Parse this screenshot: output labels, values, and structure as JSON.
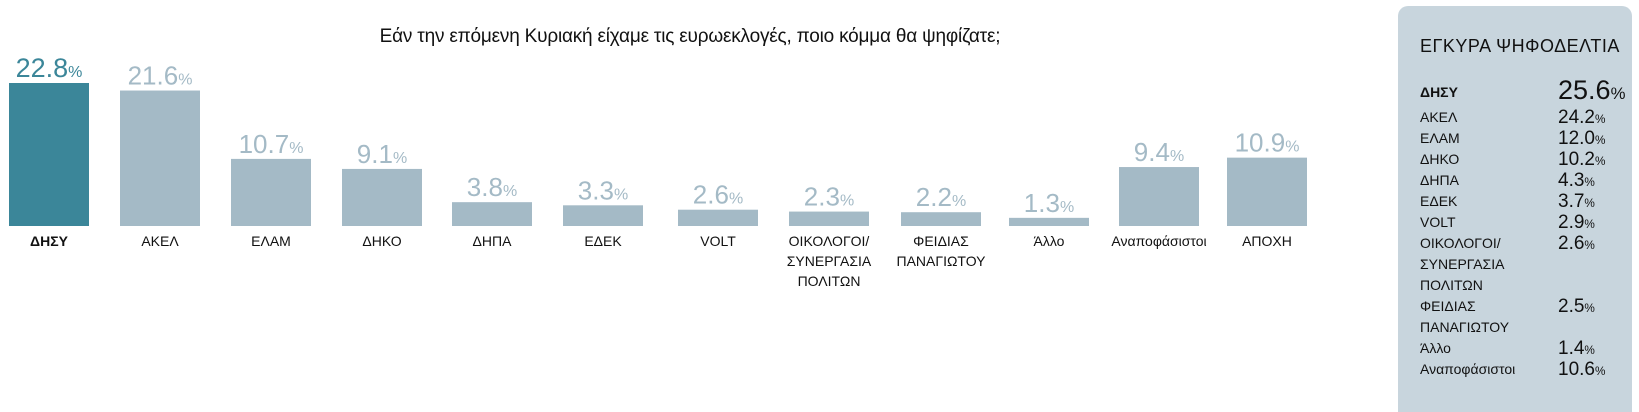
{
  "chart_data": {
    "type": "bar",
    "title": "Εάν την επόμενη Κυριακή είχαμε τις ευρωεκλογές, ποιο κόμμα θα ψηφίζατε;",
    "unit": "%",
    "categories": [
      "ΔΗΣΥ",
      "ΑΚΕΛ",
      "ΕΛΑΜ",
      "ΔΗΚΟ",
      "ΔΗΠΑ",
      "ΕΔΕΚ",
      "VOLT",
      "ΟΙΚΟΛΟΓΟΙ/ ΣΥΝΕΡΓΑΣΙΑ ΠΟΛΙΤΩΝ",
      "ΦΕΙΔΙΑΣ ΠΑΝΑΓΙΩΤΟΥ",
      "Άλλο",
      "Αναποφάσιστοι",
      "ΑΠΟΧΗ"
    ],
    "category_lines": [
      [
        "ΔΗΣΥ"
      ],
      [
        "ΑΚΕΛ"
      ],
      [
        "ΕΛΑΜ"
      ],
      [
        "ΔΗΚΟ"
      ],
      [
        "ΔΗΠΑ"
      ],
      [
        "ΕΔΕΚ"
      ],
      [
        "VOLT"
      ],
      [
        "ΟΙΚΟΛΟΓΟΙ/",
        "ΣΥΝΕΡΓΑΣΙΑ",
        "ΠΟΛΙΤΩΝ"
      ],
      [
        "ΦΕΙΔΙΑΣ",
        "ΠΑΝΑΓΙΩΤΟΥ"
      ],
      [
        "Άλλο"
      ],
      [
        "Αναποφάσιστοι"
      ],
      [
        "ΑΠΟΧΗ"
      ]
    ],
    "values": [
      22.8,
      21.6,
      10.7,
      9.1,
      3.8,
      3.3,
      2.6,
      2.3,
      2.2,
      1.3,
      9.4,
      10.9
    ],
    "highlight_index": 0,
    "colors": {
      "highlight": "#3b8699",
      "bar": "#a4bac6",
      "highlight_label": "#3b8699",
      "label": "#a4bac6"
    },
    "ylim": [
      0,
      22.8
    ],
    "grid": false,
    "legend": "none"
  },
  "panel": {
    "title": "ΕΓΚΥΡΑ ΨΗΦΟΔΕΛΤΙΑ",
    "background": "#c8d5dd",
    "rows": [
      {
        "label": "ΔΗΣΥ",
        "lines": [
          "ΔΗΣΥ"
        ],
        "value": "25.6"
      },
      {
        "label": "ΑΚΕΛ",
        "lines": [
          "ΑΚΕΛ"
        ],
        "value": "24.2"
      },
      {
        "label": "ΕΛΑΜ",
        "lines": [
          "ΕΛΑΜ"
        ],
        "value": "12.0"
      },
      {
        "label": "ΔΗΚΟ",
        "lines": [
          "ΔΗΚΟ"
        ],
        "value": "10.2"
      },
      {
        "label": "ΔΗΠΑ",
        "lines": [
          "ΔΗΠΑ"
        ],
        "value": "4.3"
      },
      {
        "label": "ΕΔΕΚ",
        "lines": [
          "ΕΔΕΚ"
        ],
        "value": "3.7"
      },
      {
        "label": "VOLT",
        "lines": [
          "VOLT"
        ],
        "value": "2.9"
      },
      {
        "label": "ΟΙΚΟΛΟΓΟΙ/ ΣΥΝΕΡΓΑΣΙΑ ΠΟΛΙΤΩΝ",
        "lines": [
          "ΟΙΚΟΛΟΓΟΙ/",
          "ΣΥΝΕΡΓΑΣΙΑ",
          "ΠΟΛΙΤΩΝ"
        ],
        "value": "2.6"
      },
      {
        "label": "ΦΕΙΔΙΑΣ ΠΑΝΑΓΙΩΤΟΥ",
        "lines": [
          "ΦΕΙΔΙΑΣ",
          "ΠΑΝΑΓΙΩΤΟΥ"
        ],
        "value": "2.5"
      },
      {
        "label": "Άλλο",
        "lines": [
          "Άλλο"
        ],
        "value": "1.4"
      },
      {
        "label": "Αναποφάσιστοι",
        "lines": [
          "Αναποφάσιστοι"
        ],
        "value": "10.6"
      }
    ]
  }
}
